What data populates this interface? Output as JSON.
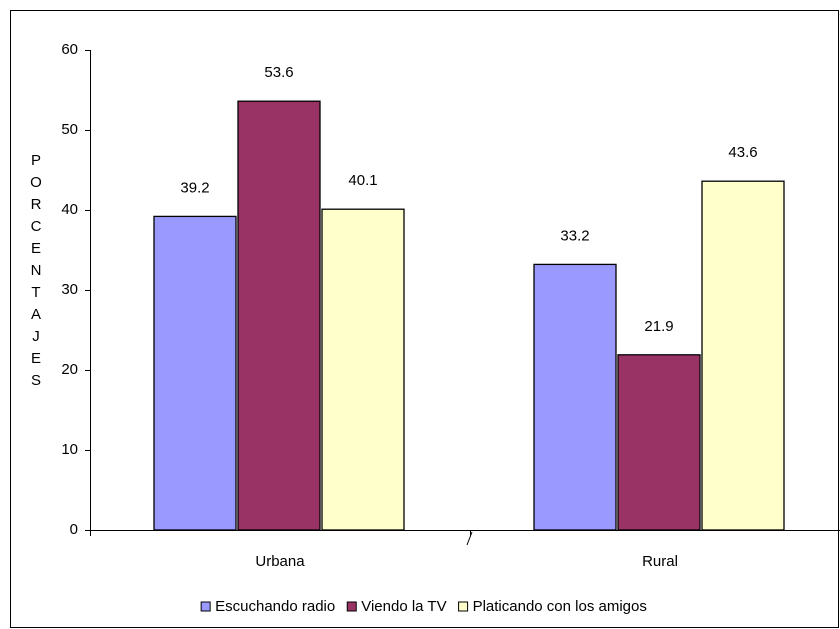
{
  "chart_data": {
    "type": "bar",
    "y_label": "PORCENTAJES",
    "categories": [
      "Urbana",
      "Rural"
    ],
    "series": [
      {
        "name": "Escuchando radio",
        "color": "#9999ff",
        "values": [
          39.2,
          33.2
        ]
      },
      {
        "name": "Viendo la TV",
        "color": "#993366",
        "values": [
          53.6,
          21.9
        ]
      },
      {
        "name": "Platicando con los amigos",
        "color": "#ffffcc",
        "values": [
          40.1,
          43.6
        ]
      }
    ],
    "ylim": [
      0,
      60
    ],
    "yticks": [
      0,
      10,
      20,
      30,
      40,
      50,
      60
    ],
    "legend": "bottom"
  }
}
